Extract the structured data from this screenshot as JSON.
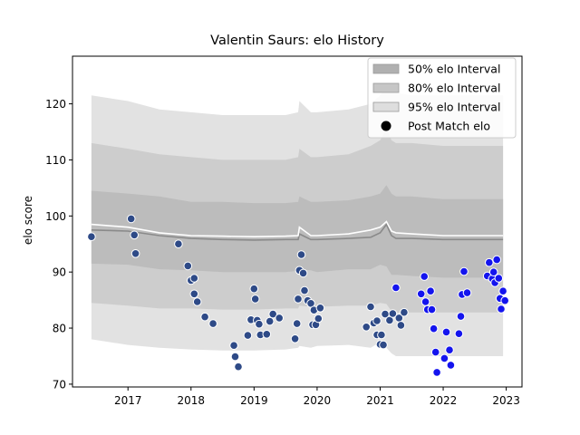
{
  "chart_data": {
    "type": "scatter",
    "title": "Valentin Saurs: elo History",
    "xlabel": "",
    "ylabel": "elo score",
    "xlim": [
      2016.12,
      2023.25
    ],
    "ylim": [
      69.5,
      128.5
    ],
    "x_ticks": [
      2017,
      2018,
      2019,
      2020,
      2021,
      2022,
      2023
    ],
    "x_tick_labels": [
      "2017",
      "2018",
      "2019",
      "2020",
      "2021",
      "2022",
      "2023"
    ],
    "y_ticks": [
      70,
      80,
      90,
      100,
      110,
      120
    ],
    "y_tick_labels": [
      "70",
      "80",
      "90",
      "100",
      "110",
      "120"
    ],
    "grid": false,
    "legend_position": "top-right",
    "legend": [
      {
        "label": "50% elo Interval",
        "kind": "band",
        "color": "#b0b0b0"
      },
      {
        "label": "80% elo Interval",
        "kind": "band",
        "color": "#c6c6c6"
      },
      {
        "label": "95% elo Interval",
        "kind": "band",
        "color": "#dedede"
      },
      {
        "label": "Post Match elo",
        "kind": "marker",
        "color": "#000000"
      }
    ],
    "colors": {
      "band95": "#e2e2e2",
      "band80": "#cdcdcd",
      "band50": "#bcbcbc",
      "median_line": "#8a8a8a",
      "mean_line": "#ffffff",
      "older_points": "#2e4a87",
      "recent_points": "#1414ee"
    },
    "bands": {
      "x": [
        2016.42,
        2017.0,
        2017.5,
        2018.0,
        2018.5,
        2019.0,
        2019.5,
        2019.7,
        2019.72,
        2019.9,
        2020.0,
        2020.5,
        2020.85,
        2021.0,
        2021.1,
        2021.18,
        2021.25,
        2021.5,
        2022.0,
        2022.5,
        2022.95
      ],
      "lo95": [
        78.0,
        77.0,
        76.5,
        76.2,
        76.0,
        76.0,
        76.2,
        76.5,
        76.8,
        76.5,
        76.8,
        77.0,
        76.5,
        77.5,
        76.5,
        75.5,
        75.0,
        75.0,
        75.0,
        75.0,
        75.0
      ],
      "lo80": [
        84.5,
        84.0,
        83.5,
        83.5,
        83.3,
        83.3,
        83.5,
        83.5,
        84.0,
        83.8,
        83.8,
        84.0,
        84.0,
        84.5,
        84.3,
        83.0,
        82.8,
        82.8,
        82.8,
        82.8,
        82.8
      ],
      "lo50": [
        91.5,
        91.3,
        90.5,
        90.3,
        90.0,
        90.0,
        90.0,
        90.2,
        90.5,
        90.3,
        90.0,
        90.5,
        90.5,
        91.3,
        91.0,
        89.5,
        89.5,
        89.3,
        89.0,
        89.0,
        89.0
      ],
      "hi50": [
        104.5,
        104.0,
        103.5,
        102.5,
        102.5,
        102.3,
        102.3,
        102.5,
        103.5,
        102.5,
        102.5,
        102.8,
        103.5,
        104.0,
        105.5,
        104.0,
        103.5,
        103.5,
        103.0,
        103.0,
        103.0
      ],
      "hi80": [
        113.0,
        112.0,
        111.0,
        110.5,
        110.0,
        110.0,
        110.0,
        110.5,
        112.0,
        110.5,
        110.5,
        111.0,
        112.5,
        113.5,
        115.5,
        113.5,
        113.0,
        113.0,
        112.5,
        112.5,
        112.5
      ],
      "hi95": [
        121.5,
        120.5,
        119.0,
        118.5,
        118.0,
        118.0,
        118.0,
        118.5,
        120.5,
        118.5,
        118.5,
        119.0,
        120.0,
        121.5,
        123.0,
        122.5,
        122.0,
        121.5,
        121.5,
        121.5,
        121.5
      ],
      "median": [
        97.5,
        97.3,
        96.5,
        96.0,
        95.8,
        95.7,
        95.8,
        95.8,
        96.8,
        95.8,
        95.8,
        96.0,
        96.2,
        97.0,
        98.5,
        96.5,
        96.0,
        96.0,
        95.8,
        95.8,
        95.8
      ],
      "mean": [
        98.5,
        98.0,
        97.0,
        96.5,
        96.4,
        96.3,
        96.4,
        96.5,
        98.0,
        96.5,
        96.5,
        96.8,
        97.5,
        98.0,
        99.0,
        97.3,
        97.0,
        96.8,
        96.5,
        96.5,
        96.5
      ]
    },
    "series": [
      {
        "color_key": "older_points",
        "points": [
          [
            2016.42,
            96.3
          ],
          [
            2017.05,
            99.5
          ],
          [
            2017.1,
            96.6
          ],
          [
            2017.12,
            93.3
          ],
          [
            2017.8,
            95.0
          ],
          [
            2017.95,
            91.1
          ],
          [
            2018.0,
            88.5
          ],
          [
            2018.05,
            88.9
          ],
          [
            2018.05,
            86.1
          ],
          [
            2018.1,
            84.7
          ],
          [
            2018.22,
            82.0
          ],
          [
            2018.35,
            80.8
          ],
          [
            2018.68,
            76.9
          ],
          [
            2018.7,
            74.9
          ],
          [
            2018.75,
            73.1
          ],
          [
            2018.9,
            78.7
          ],
          [
            2018.95,
            81.5
          ],
          [
            2019.0,
            87.0
          ],
          [
            2019.02,
            85.2
          ],
          [
            2019.05,
            81.4
          ],
          [
            2019.08,
            80.7
          ],
          [
            2019.1,
            78.8
          ],
          [
            2019.2,
            78.9
          ],
          [
            2019.25,
            81.2
          ],
          [
            2019.3,
            82.5
          ],
          [
            2019.4,
            81.8
          ],
          [
            2019.65,
            78.1
          ],
          [
            2019.68,
            80.8
          ],
          [
            2019.7,
            85.2
          ],
          [
            2019.72,
            90.3
          ],
          [
            2019.75,
            93.1
          ],
          [
            2019.78,
            89.8
          ],
          [
            2019.8,
            86.7
          ],
          [
            2019.85,
            84.9
          ],
          [
            2019.9,
            84.4
          ],
          [
            2019.93,
            80.6
          ],
          [
            2019.95,
            83.2
          ],
          [
            2019.98,
            80.6
          ],
          [
            2020.02,
            81.7
          ],
          [
            2020.05,
            83.6
          ],
          [
            2020.78,
            80.2
          ],
          [
            2020.85,
            83.8
          ],
          [
            2020.9,
            80.9
          ],
          [
            2020.95,
            81.3
          ],
          [
            2020.95,
            78.8
          ],
          [
            2021.0,
            77.1
          ],
          [
            2021.02,
            78.8
          ],
          [
            2021.05,
            77.0
          ],
          [
            2021.08,
            82.5
          ],
          [
            2021.15,
            81.4
          ],
          [
            2021.2,
            82.6
          ],
          [
            2021.3,
            81.8
          ],
          [
            2021.33,
            80.5
          ],
          [
            2021.38,
            82.8
          ]
        ]
      },
      {
        "color_key": "recent_points",
        "points": [
          [
            2021.25,
            87.2
          ],
          [
            2021.65,
            86.1
          ],
          [
            2021.7,
            89.2
          ],
          [
            2021.72,
            84.7
          ],
          [
            2021.75,
            83.3
          ],
          [
            2021.8,
            86.6
          ],
          [
            2021.82,
            83.3
          ],
          [
            2021.85,
            79.9
          ],
          [
            2021.88,
            75.7
          ],
          [
            2021.9,
            72.1
          ],
          [
            2022.02,
            74.6
          ],
          [
            2022.05,
            79.3
          ],
          [
            2022.1,
            76.1
          ],
          [
            2022.12,
            73.4
          ],
          [
            2022.25,
            79.0
          ],
          [
            2022.28,
            82.1
          ],
          [
            2022.3,
            86.0
          ],
          [
            2022.33,
            90.1
          ],
          [
            2022.38,
            86.3
          ],
          [
            2022.7,
            89.3
          ],
          [
            2022.73,
            91.7
          ],
          [
            2022.78,
            88.8
          ],
          [
            2022.8,
            90.0
          ],
          [
            2022.82,
            88.1
          ],
          [
            2022.85,
            92.2
          ],
          [
            2022.88,
            88.9
          ],
          [
            2022.9,
            85.3
          ],
          [
            2022.92,
            83.4
          ],
          [
            2022.95,
            86.6
          ],
          [
            2022.98,
            84.9
          ]
        ]
      }
    ]
  }
}
